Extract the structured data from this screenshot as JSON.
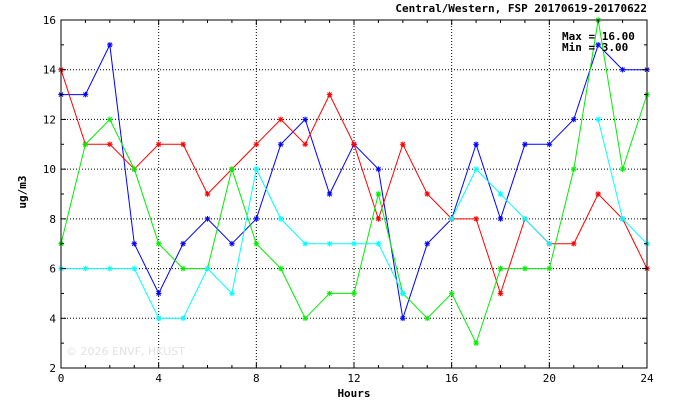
{
  "chart_data": {
    "type": "line",
    "title": "Central/Western, FSP 20170619-20170622",
    "xlabel": "Hours",
    "ylabel": "ug/m3",
    "xlim": [
      0,
      24
    ],
    "ylim": [
      2,
      16
    ],
    "xticks": [
      0,
      4,
      8,
      12,
      16,
      20,
      24
    ],
    "yticks": [
      2,
      4,
      6,
      8,
      10,
      12,
      14,
      16
    ],
    "grid": true,
    "stats": {
      "max_label": "Max = 16.00",
      "min_label": "Min = 3.00"
    },
    "watermark": "© 2026  ENVF, HKUST",
    "x": [
      0,
      1,
      2,
      3,
      4,
      5,
      6,
      7,
      8,
      9,
      10,
      11,
      12,
      13,
      14,
      15,
      16,
      17,
      18,
      19,
      20,
      21,
      22,
      23,
      24
    ],
    "series": [
      {
        "color": "#0000ff",
        "values": [
          13,
          13,
          15,
          7,
          5,
          7,
          8,
          7,
          8,
          11,
          12,
          9,
          11,
          10,
          4,
          7,
          8,
          11,
          8,
          11,
          11,
          12,
          15,
          14,
          14
        ]
      },
      {
        "color": "#ff0000",
        "values": [
          14,
          11,
          11,
          10,
          11,
          11,
          9,
          10,
          11,
          12,
          11,
          13,
          11,
          8,
          11,
          9,
          8,
          8,
          5,
          8,
          7,
          7,
          9,
          8,
          6
        ]
      },
      {
        "color": "#00ee00",
        "values": [
          7,
          11,
          12,
          10,
          7,
          6,
          6,
          10,
          7,
          6,
          4,
          5,
          5,
          9,
          5,
          4,
          5,
          3,
          6,
          6,
          6,
          10,
          16,
          10,
          13
        ]
      },
      {
        "color": "#00ffff",
        "values": [
          6,
          6,
          6,
          6,
          4,
          4,
          6,
          5,
          10,
          8,
          7,
          7,
          7,
          7,
          5,
          null,
          8,
          10,
          9,
          8,
          7,
          null,
          12,
          8,
          7
        ]
      }
    ]
  }
}
